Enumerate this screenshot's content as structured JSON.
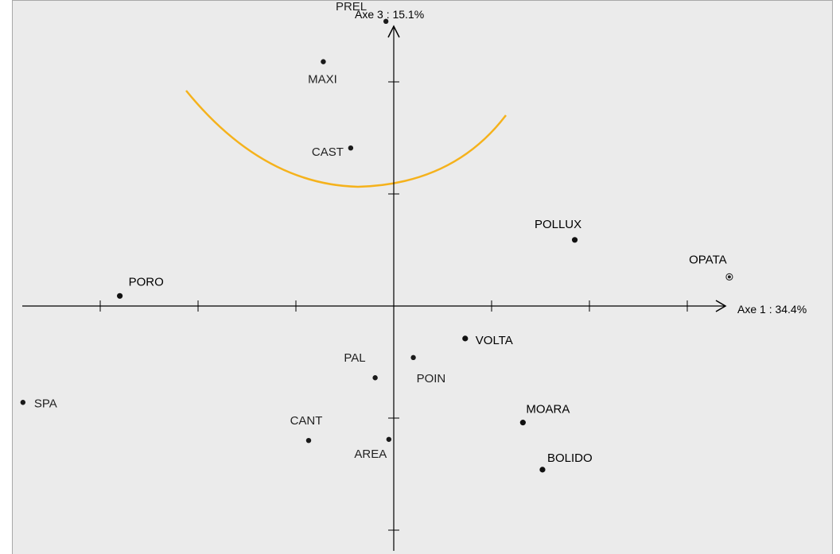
{
  "chart_data": {
    "type": "scatter",
    "xlabel": "Axe 1 : 34.4%",
    "ylabel": "Axe 3 : 15.1%",
    "xlim": [
      -3.84,
      3.36
    ],
    "ylim": [
      -2.3,
      3.04
    ],
    "grid": false,
    "arrow_color": "#000000",
    "curve_color": "#f5b21c",
    "points": [
      {
        "label": "PREL",
        "x": -0.08,
        "y": 2.54,
        "style": "normal"
      },
      {
        "label": "MAXI",
        "x": -0.72,
        "y": 2.18,
        "style": "normal"
      },
      {
        "label": "CAST",
        "x": -0.44,
        "y": 1.41,
        "style": "normal"
      },
      {
        "label": "POLLUX",
        "x": 1.85,
        "y": 0.59,
        "style": "dark"
      },
      {
        "label": "OPATA",
        "x": 3.43,
        "y": 0.26,
        "style": "ring"
      },
      {
        "label": "PORO",
        "x": -2.8,
        "y": 0.09,
        "style": "dark"
      },
      {
        "label": "VOLTA",
        "x": 0.73,
        "y": -0.29,
        "style": "dark"
      },
      {
        "label": "POIN",
        "x": 0.2,
        "y": -0.46,
        "style": "normal"
      },
      {
        "label": "PAL",
        "x": -0.19,
        "y": -0.64,
        "style": "normal"
      },
      {
        "label": "SPA",
        "x": -3.79,
        "y": -0.86,
        "style": "normal"
      },
      {
        "label": "MOARA",
        "x": 1.32,
        "y": -1.04,
        "style": "dark"
      },
      {
        "label": "CANT",
        "x": -0.87,
        "y": -1.2,
        "style": "normal"
      },
      {
        "label": "AREA",
        "x": -0.05,
        "y": -1.19,
        "style": "normal"
      },
      {
        "label": "BOLIDO",
        "x": 1.52,
        "y": -1.46,
        "style": "dark"
      }
    ]
  }
}
